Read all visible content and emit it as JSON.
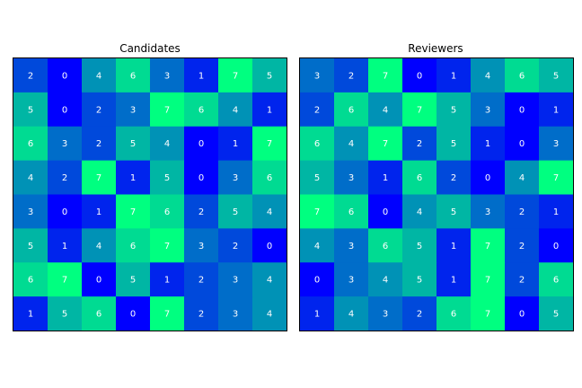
{
  "chart_data": [
    {
      "type": "heatmap",
      "title": "Candidates",
      "rows": 8,
      "cols": 8,
      "values": [
        [
          2,
          0,
          4,
          6,
          3,
          1,
          7,
          5
        ],
        [
          5,
          0,
          2,
          3,
          7,
          6,
          4,
          1
        ],
        [
          6,
          3,
          2,
          5,
          4,
          0,
          1,
          7
        ],
        [
          4,
          2,
          7,
          1,
          5,
          0,
          3,
          6
        ],
        [
          3,
          0,
          1,
          7,
          6,
          2,
          5,
          4
        ],
        [
          5,
          1,
          4,
          6,
          7,
          3,
          2,
          0
        ],
        [
          6,
          7,
          0,
          5,
          1,
          2,
          3,
          4
        ],
        [
          1,
          5,
          6,
          0,
          7,
          2,
          3,
          4
        ]
      ],
      "value_range": [
        0,
        7
      ],
      "colormap": "winter",
      "annotated": true
    },
    {
      "type": "heatmap",
      "title": "Reviewers",
      "rows": 8,
      "cols": 8,
      "values": [
        [
          3,
          2,
          7,
          0,
          1,
          4,
          6,
          5
        ],
        [
          2,
          6,
          4,
          7,
          5,
          3,
          0,
          1
        ],
        [
          6,
          4,
          7,
          2,
          5,
          1,
          0,
          3
        ],
        [
          5,
          3,
          1,
          6,
          2,
          0,
          4,
          7
        ],
        [
          7,
          6,
          0,
          4,
          5,
          3,
          2,
          1
        ],
        [
          4,
          3,
          6,
          5,
          1,
          7,
          2,
          0
        ],
        [
          0,
          3,
          4,
          5,
          1,
          7,
          2,
          6
        ],
        [
          1,
          4,
          3,
          2,
          6,
          7,
          0,
          5
        ]
      ],
      "value_range": [
        0,
        7
      ],
      "colormap": "winter",
      "annotated": true
    }
  ],
  "colors": {
    "low": "#0000ff",
    "high": "#00ff80",
    "label": "#ffffff",
    "frame": "#000000"
  }
}
